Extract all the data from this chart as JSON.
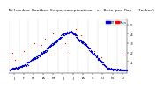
{
  "title": "Milwaukee Weather Evapotranspiration  vs Rain per Day  (Inches)",
  "title_fontsize": 3.2,
  "background_color": "#ffffff",
  "legend_labels": [
    "ET",
    "Rain"
  ],
  "legend_colors": [
    "#0000cc",
    "#ff0000"
  ],
  "et_color": "#0000cc",
  "rain_color": "#ff0000",
  "zero_color": "#000000",
  "ylim": [
    -0.02,
    0.55
  ],
  "xlim": [
    0,
    366
  ],
  "grid_color": "#aaaaaa",
  "ytick_labels": [
    ".1",
    ".2",
    ".3",
    ".4",
    ".5"
  ],
  "ytick_vals": [
    0.1,
    0.2,
    0.3,
    0.4,
    0.5
  ],
  "month_starts": [
    1,
    32,
    60,
    91,
    121,
    152,
    182,
    213,
    244,
    274,
    305,
    335
  ],
  "month_labels": [
    "J",
    "F",
    "M",
    "A",
    "M",
    "J",
    "J",
    "A",
    "S",
    "O",
    "N",
    "D"
  ],
  "et_data": [
    0.02,
    0.02,
    0.01,
    0.02,
    0.02,
    0.03,
    0.03,
    0.02,
    0.03,
    0.03,
    0.03,
    0.04,
    0.04,
    0.03,
    0.02,
    0.03,
    0.04,
    0.04,
    0.03,
    0.04,
    0.04,
    0.05,
    0.04,
    0.03,
    0.04,
    0.04,
    0.05,
    0.03,
    0.04,
    0.05,
    0.06,
    0.05,
    0.05,
    0.04,
    0.05,
    0.06,
    0.05,
    0.06,
    0.06,
    0.07,
    0.06,
    0.05,
    0.06,
    0.07,
    0.07,
    0.06,
    0.07,
    0.08,
    0.07,
    0.08,
    0.08,
    0.07,
    0.08,
    0.07,
    0.06,
    0.08,
    0.09,
    0.08,
    0.07,
    0.09,
    0.1,
    0.09,
    0.1,
    0.11,
    0.1,
    0.11,
    0.1,
    0.12,
    0.11,
    0.12,
    0.13,
    0.12,
    0.11,
    0.13,
    0.12,
    0.13,
    0.14,
    0.13,
    0.14,
    0.15,
    0.14,
    0.13,
    0.15,
    0.14,
    0.16,
    0.15,
    0.14,
    0.16,
    0.15,
    0.17,
    0.17,
    0.18,
    0.17,
    0.16,
    0.18,
    0.17,
    0.19,
    0.18,
    0.19,
    0.2,
    0.19,
    0.21,
    0.2,
    0.19,
    0.21,
    0.2,
    0.22,
    0.21,
    0.2,
    0.22,
    0.21,
    0.23,
    0.22,
    0.21,
    0.23,
    0.24,
    0.23,
    0.22,
    0.24,
    0.23,
    0.25,
    0.24,
    0.26,
    0.25,
    0.27,
    0.26,
    0.28,
    0.27,
    0.26,
    0.28,
    0.27,
    0.29,
    0.28,
    0.3,
    0.29,
    0.28,
    0.3,
    0.29,
    0.31,
    0.3,
    0.32,
    0.31,
    0.3,
    0.32,
    0.31,
    0.33,
    0.32,
    0.31,
    0.33,
    0.32,
    0.34,
    0.34,
    0.35,
    0.34,
    0.36,
    0.35,
    0.37,
    0.36,
    0.35,
    0.37,
    0.36,
    0.38,
    0.37,
    0.39,
    0.38,
    0.37,
    0.39,
    0.38,
    0.4,
    0.39,
    0.38,
    0.4,
    0.39,
    0.41,
    0.4,
    0.39,
    0.41,
    0.4,
    0.42,
    0.41,
    0.4,
    0.4,
    0.41,
    0.42,
    0.41,
    0.4,
    0.42,
    0.41,
    0.43,
    0.42,
    0.41,
    0.43,
    0.42,
    0.41,
    0.4,
    0.42,
    0.41,
    0.4,
    0.39,
    0.41,
    0.4,
    0.39,
    0.38,
    0.4,
    0.39,
    0.38,
    0.37,
    0.39,
    0.38,
    0.37,
    0.36,
    0.35,
    0.35,
    0.34,
    0.33,
    0.35,
    0.34,
    0.33,
    0.32,
    0.34,
    0.33,
    0.32,
    0.31,
    0.33,
    0.32,
    0.31,
    0.3,
    0.32,
    0.31,
    0.3,
    0.29,
    0.31,
    0.3,
    0.29,
    0.28,
    0.3,
    0.29,
    0.28,
    0.27,
    0.29,
    0.28,
    0.27,
    0.26,
    0.26,
    0.25,
    0.24,
    0.25,
    0.24,
    0.23,
    0.22,
    0.24,
    0.23,
    0.22,
    0.21,
    0.22,
    0.21,
    0.2,
    0.19,
    0.21,
    0.2,
    0.19,
    0.18,
    0.2,
    0.19,
    0.18,
    0.17,
    0.18,
    0.17,
    0.16,
    0.15,
    0.17,
    0.16,
    0.15,
    0.14,
    0.13,
    0.12,
    0.14,
    0.13,
    0.12,
    0.11,
    0.13,
    0.12,
    0.11,
    0.1,
    0.11,
    0.1,
    0.09,
    0.1,
    0.09,
    0.08,
    0.09,
    0.08,
    0.07,
    0.08,
    0.07,
    0.06,
    0.07,
    0.06,
    0.05,
    0.06,
    0.05,
    0.04,
    0.05,
    0.04,
    0.04,
    0.03,
    0.04,
    0.03,
    0.02,
    0.03,
    0.04,
    0.03,
    0.02,
    0.03,
    0.04,
    0.03,
    0.02,
    0.03,
    0.02,
    0.03,
    0.02,
    0.01,
    0.02,
    0.03,
    0.02,
    0.01,
    0.02,
    0.01,
    0.02,
    0.03,
    0.02,
    0.01,
    0.02,
    0.03,
    0.02,
    0.01,
    0.02,
    0.03,
    0.02,
    0.01,
    0.02,
    0.03,
    0.02,
    0.01,
    0.02,
    0.01,
    0.02,
    0.03,
    0.02,
    0.01,
    0.02,
    0.01,
    0.02,
    0.01,
    0.02,
    0.01,
    0.02,
    0.01,
    0.02,
    0.01,
    0.02,
    0.01,
    0.02,
    0.01,
    0.02
  ],
  "rain_data": [
    0.0,
    0.0,
    0.0,
    0.0,
    0.15,
    0.0,
    0.0,
    0.0,
    0.0,
    0.0,
    0.2,
    0.0,
    0.0,
    0.0,
    0.0,
    0.0,
    0.0,
    0.0,
    0.12,
    0.0,
    0.0,
    0.0,
    0.0,
    0.0,
    0.0,
    0.0,
    0.0,
    0.0,
    0.0,
    0.0,
    0.0,
    0.0,
    0.0,
    0.0,
    0.0,
    0.0,
    0.0,
    0.18,
    0.0,
    0.0,
    0.0,
    0.0,
    0.0,
    0.0,
    0.0,
    0.22,
    0.0,
    0.0,
    0.0,
    0.0,
    0.0,
    0.0,
    0.0,
    0.0,
    0.0,
    0.0,
    0.0,
    0.0,
    0.0,
    0.0,
    0.0,
    0.0,
    0.0,
    0.0,
    0.0,
    0.0,
    0.0,
    0.0,
    0.25,
    0.0,
    0.0,
    0.0,
    0.0,
    0.0,
    0.0,
    0.0,
    0.0,
    0.0,
    0.3,
    0.0,
    0.0,
    0.0,
    0.0,
    0.0,
    0.0,
    0.0,
    0.0,
    0.0,
    0.0,
    0.0,
    0.0,
    0.0,
    0.0,
    0.0,
    0.0,
    0.0,
    0.0,
    0.0,
    0.0,
    0.0,
    0.28,
    0.0,
    0.0,
    0.0,
    0.0,
    0.0,
    0.0,
    0.0,
    0.0,
    0.0,
    0.0,
    0.0,
    0.35,
    0.0,
    0.0,
    0.0,
    0.0,
    0.0,
    0.0,
    0.0,
    0.0,
    0.0,
    0.0,
    0.0,
    0.0,
    0.18,
    0.0,
    0.0,
    0.0,
    0.0,
    0.0,
    0.0,
    0.0,
    0.0,
    0.4,
    0.0,
    0.0,
    0.0,
    0.0,
    0.0,
    0.0,
    0.0,
    0.0,
    0.0,
    0.0,
    0.0,
    0.0,
    0.0,
    0.0,
    0.0,
    0.0,
    0.0,
    0.0,
    0.0,
    0.0,
    0.0,
    0.0,
    0.0,
    0.0,
    0.0,
    0.0,
    0.25,
    0.0,
    0.0,
    0.0,
    0.0,
    0.0,
    0.0,
    0.0,
    0.0,
    0.0,
    0.0,
    0.0,
    0.0,
    0.3,
    0.0,
    0.0,
    0.0,
    0.0,
    0.0,
    0.0,
    0.0,
    0.0,
    0.0,
    0.0,
    0.0,
    0.0,
    0.2,
    0.0,
    0.0,
    0.0,
    0.0,
    0.0,
    0.0,
    0.0,
    0.0,
    0.0,
    0.0,
    0.0,
    0.0,
    0.0,
    0.0,
    0.0,
    0.0,
    0.0,
    0.0,
    0.0,
    0.45,
    0.0,
    0.0,
    0.0,
    0.0,
    0.0,
    0.0,
    0.0,
    0.0,
    0.0,
    0.0,
    0.0,
    0.0,
    0.0,
    0.0,
    0.38,
    0.0,
    0.0,
    0.0,
    0.0,
    0.0,
    0.0,
    0.0,
    0.0,
    0.0,
    0.0,
    0.0,
    0.0,
    0.0,
    0.0,
    0.0,
    0.0,
    0.0,
    0.0,
    0.0,
    0.0,
    0.0,
    0.0,
    0.0,
    0.0,
    0.0,
    0.0,
    0.0,
    0.0,
    0.0,
    0.0,
    0.0,
    0.0,
    0.0,
    0.0,
    0.0,
    0.0,
    0.0,
    0.0,
    0.0,
    0.0,
    0.22,
    0.0,
    0.0,
    0.0,
    0.0,
    0.0,
    0.0,
    0.0,
    0.0,
    0.0,
    0.0,
    0.0,
    0.0,
    0.0,
    0.0,
    0.0,
    0.0,
    0.0,
    0.0,
    0.0,
    0.0,
    0.0,
    0.0,
    0.15,
    0.0,
    0.0,
    0.0,
    0.0,
    0.0,
    0.0,
    0.0,
    0.0,
    0.0,
    0.0,
    0.0,
    0.0,
    0.0,
    0.0,
    0.0,
    0.0,
    0.0,
    0.0,
    0.0,
    0.0,
    0.0,
    0.0,
    0.0,
    0.0,
    0.0,
    0.0,
    0.0,
    0.0,
    0.0,
    0.0,
    0.0,
    0.0,
    0.0,
    0.0,
    0.0,
    0.0,
    0.0,
    0.0,
    0.0,
    0.0,
    0.0,
    0.0,
    0.0,
    0.0,
    0.0,
    0.0,
    0.0,
    0.0,
    0.0,
    0.0,
    0.0,
    0.0,
    0.0,
    0.0,
    0.0,
    0.0,
    0.0,
    0.0,
    0.0,
    0.0,
    0.0,
    0.0,
    0.0,
    0.0,
    0.0,
    0.18,
    0.0,
    0.0,
    0.0,
    0.0,
    0.0,
    0.0,
    0.0,
    0.0,
    0.0,
    0.0,
    0.0,
    0.0,
    0.0
  ]
}
